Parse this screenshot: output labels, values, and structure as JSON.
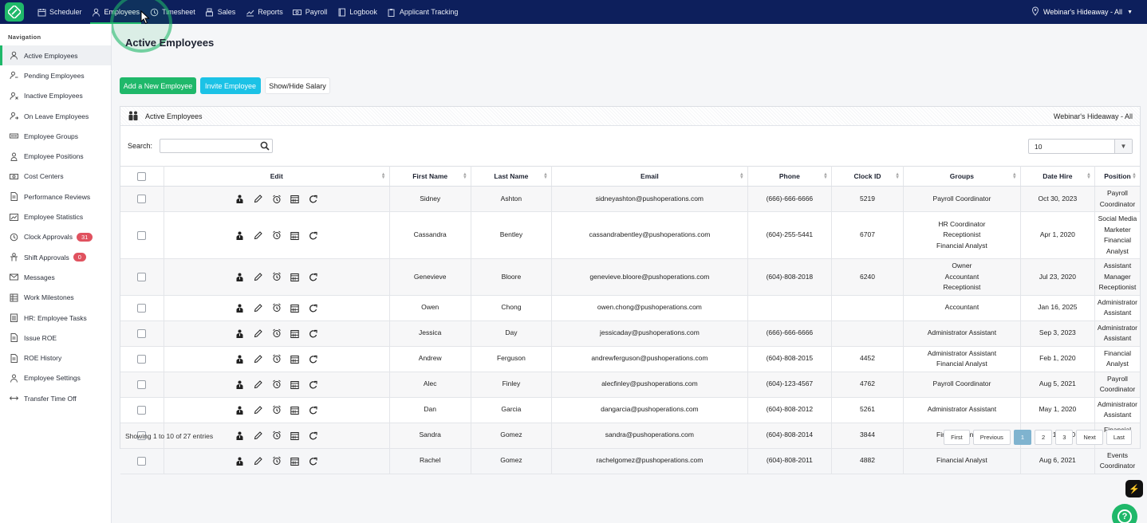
{
  "topnav": {
    "items": [
      {
        "label": "Scheduler",
        "icon": "calendar-icon"
      },
      {
        "label": "Employees",
        "icon": "person-icon",
        "active": true
      },
      {
        "label": "Timesheet",
        "icon": "clock-icon"
      },
      {
        "label": "Sales",
        "icon": "register-icon"
      },
      {
        "label": "Reports",
        "icon": "chart-icon"
      },
      {
        "label": "Payroll",
        "icon": "money-icon"
      },
      {
        "label": "Logbook",
        "icon": "book-icon"
      },
      {
        "label": "Applicant Tracking",
        "icon": "clipboard-icon"
      }
    ],
    "location": "Webinar's Hideaway - All"
  },
  "sidebar": {
    "heading": "Navigation",
    "items": [
      {
        "label": "Active Employees",
        "icon": "person-icon",
        "active": true
      },
      {
        "label": "Pending Employees",
        "icon": "person-pending-icon"
      },
      {
        "label": "Inactive Employees",
        "icon": "person-x-icon"
      },
      {
        "label": "On Leave Employees",
        "icon": "person-leave-icon"
      },
      {
        "label": "Employee Groups",
        "icon": "group-icon"
      },
      {
        "label": "Employee Positions",
        "icon": "position-icon"
      },
      {
        "label": "Cost Centers",
        "icon": "money-icon"
      },
      {
        "label": "Performance Reviews",
        "icon": "document-icon"
      },
      {
        "label": "Employee Statistics",
        "icon": "stats-icon"
      },
      {
        "label": "Clock Approvals",
        "icon": "clock-icon",
        "badge": "31"
      },
      {
        "label": "Shift Approvals",
        "icon": "shift-icon",
        "badge": "0"
      },
      {
        "label": "Messages",
        "icon": "mail-icon"
      },
      {
        "label": "Work Milestones",
        "icon": "milestone-icon"
      },
      {
        "label": "HR: Employee Tasks",
        "icon": "tasks-icon"
      },
      {
        "label": "Issue ROE",
        "icon": "document-icon"
      },
      {
        "label": "ROE History",
        "icon": "document-icon"
      },
      {
        "label": "Employee Settings",
        "icon": "person-gear-icon"
      },
      {
        "label": "Transfer Time Off",
        "icon": "arrows-horizontal-icon"
      }
    ]
  },
  "main": {
    "title": "Active Employees",
    "buttons": {
      "add": "Add a New Employee",
      "invite": "Invite Employee",
      "salary": "Show/Hide Salary"
    },
    "panel": {
      "title": "Active Employees",
      "location": "Webinar's Hideaway - All"
    },
    "search_label": "Search:",
    "search_value": "",
    "page_length": "10",
    "columns": [
      "Edit",
      "First Name",
      "Last Name",
      "Email",
      "Phone",
      "Clock ID",
      "Groups",
      "Date Hire",
      "Position"
    ],
    "rows": [
      {
        "first": "Sidney",
        "last": "Ashton",
        "email": "sidneyashton@pushoperations.com",
        "phone": "(666)-666-6666",
        "clock": "5219",
        "groups": [
          "Payroll Coordinator"
        ],
        "hire": "Oct 30, 2023",
        "position": [
          "Payroll Coordinator"
        ]
      },
      {
        "first": "Cassandra",
        "last": "Bentley",
        "email": "cassandrabentley@pushoperations.com",
        "phone": "(604)-255-5441",
        "clock": "6707",
        "groups": [
          "HR Coordinator",
          "Receptionist",
          "Financial Analyst"
        ],
        "hire": "Apr 1, 2020",
        "position": [
          "Social Media Marketer",
          "Financial Analyst"
        ]
      },
      {
        "first": "Genevieve",
        "last": "Bloore",
        "email": "genevieve.bloore@pushoperations.com",
        "phone": "(604)-808-2018",
        "clock": "6240",
        "groups": [
          "Owner",
          "Accountant",
          "Receptionist"
        ],
        "hire": "Jul 23, 2020",
        "position": [
          "Assistant Manager",
          "Receptionist"
        ]
      },
      {
        "first": "Owen",
        "last": "Chong",
        "email": "owen.chong@pushoperations.com",
        "phone": "",
        "clock": "",
        "groups": [
          "Accountant"
        ],
        "hire": "Jan 16, 2025",
        "position": [
          "Administrator Assistant"
        ]
      },
      {
        "first": "Jessica",
        "last": "Day",
        "email": "jessicaday@pushoperations.com",
        "phone": "(666)-666-6666",
        "clock": "",
        "groups": [
          "Administrator Assistant"
        ],
        "hire": "Sep 3, 2023",
        "position": [
          "Administrator Assistant"
        ]
      },
      {
        "first": "Andrew",
        "last": "Ferguson",
        "email": "andrewferguson@pushoperations.com",
        "phone": "(604)-808-2015",
        "clock": "4452",
        "groups": [
          "Administrator Assistant",
          "Financial Analyst"
        ],
        "hire": "Feb 1, 2020",
        "position": [
          "Financial Analyst"
        ]
      },
      {
        "first": "Alec",
        "last": "Finley",
        "email": "alecfinley@pushoperations.com",
        "phone": "(604)-123-4567",
        "clock": "4762",
        "groups": [
          "Payroll Coordinator"
        ],
        "hire": "Aug 5, 2021",
        "position": [
          "Payroll Coordinator"
        ]
      },
      {
        "first": "Dan",
        "last": "Garcia",
        "email": "dangarcia@pushoperations.com",
        "phone": "(604)-808-2012",
        "clock": "5261",
        "groups": [
          "Administrator Assistant"
        ],
        "hire": "May 1, 2020",
        "position": [
          "Administrator Assistant"
        ]
      },
      {
        "first": "Sandra",
        "last": "Gomez",
        "email": "sandra@pushoperations.com",
        "phone": "(604)-808-2014",
        "clock": "3844",
        "groups": [
          "Financial Analyst"
        ],
        "hire": "Jan 1, 2020",
        "position": [
          "Financial Analyst"
        ]
      },
      {
        "first": "Rachel",
        "last": "Gomez",
        "email": "rachelgomez@pushoperations.com",
        "phone": "(604)-808-2011",
        "clock": "4882",
        "groups": [
          "Financial Analyst"
        ],
        "hire": "Aug 6, 2021",
        "position": [
          "Events Coordinator"
        ]
      }
    ],
    "footer_info": "Showing 1 to 10 of 27 entries",
    "pagination": [
      "First",
      "Previous",
      "1",
      "2",
      "3",
      "Next",
      "Last"
    ],
    "current_page": "1"
  },
  "colors": {
    "topbar": "#0d1f5c",
    "accent": "#1fb86a",
    "invite": "#1bc2e6",
    "badge": "#e0525f"
  }
}
